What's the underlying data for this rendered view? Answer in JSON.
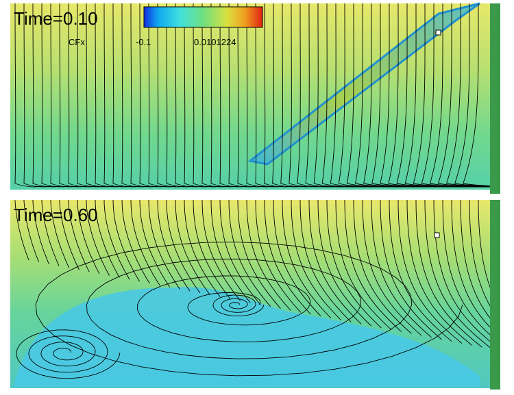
{
  "panels": [
    {
      "time_label": "Time=0.10"
    },
    {
      "time_label": "Time=0.60"
    }
  ],
  "colorbar": {
    "label": "CFx",
    "tick_labels": [
      "-0.1",
      "0.0101224"
    ]
  }
}
